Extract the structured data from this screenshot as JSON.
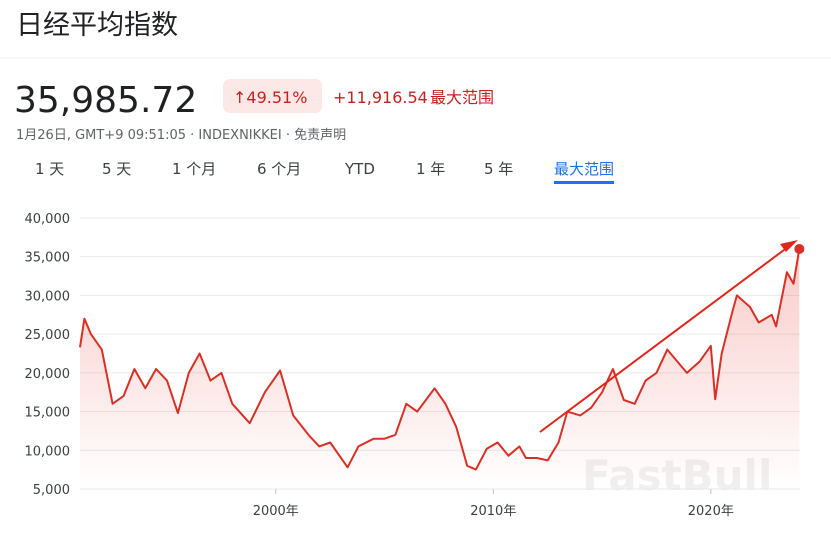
{
  "header": {
    "title": "日经平均指数",
    "price": "35,985.72",
    "change_percent": "↑49.51%",
    "change": "+11,916.54",
    "range": "最大范围",
    "timestamp": "1月26日, GMT+9 09:51:05 · INDEXNIKKEI · 免责声明"
  },
  "tabs": {
    "items": [
      "1 天",
      "5 天",
      "1 个月",
      "6 个月",
      "YTD",
      "1 年",
      "5 年",
      "最大范围"
    ],
    "selected": 7
  },
  "chart_data": {
    "type": "line",
    "color": "#d93025",
    "watermark": "FastBull",
    "grid": true,
    "xlim": [
      1991,
      2024.1
    ],
    "xticks": [
      {
        "value": 2000,
        "label": "2000年"
      },
      {
        "value": 2010,
        "label": "2010年"
      },
      {
        "value": 2020,
        "label": "2020年"
      }
    ],
    "ylim": [
      5000,
      40000
    ],
    "yticks": [
      {
        "value": 5000,
        "label": "5,000"
      },
      {
        "value": 10000,
        "label": "10,000"
      },
      {
        "value": 15000,
        "label": "15,000"
      },
      {
        "value": 20000,
        "label": "20,000"
      },
      {
        "value": 25000,
        "label": "25,000"
      },
      {
        "value": 30000,
        "label": "30,000"
      },
      {
        "value": 35000,
        "label": "35,000"
      },
      {
        "value": 40000,
        "label": "40,000"
      }
    ],
    "x": [
      1991.0,
      1991.2,
      1991.5,
      1992.0,
      1992.5,
      1993.0,
      1993.5,
      1994.0,
      1994.5,
      1995.0,
      1995.5,
      1996.0,
      1996.5,
      1997.0,
      1997.5,
      1998.0,
      1998.8,
      1999.5,
      2000.2,
      2000.8,
      2001.5,
      2002.0,
      2002.5,
      2003.3,
      2003.8,
      2004.5,
      2005.0,
      2005.5,
      2006.0,
      2006.5,
      2007.3,
      2007.8,
      2008.3,
      2008.8,
      2009.2,
      2009.7,
      2010.2,
      2010.7,
      2011.2,
      2011.5,
      2012.0,
      2012.5,
      2013.0,
      2013.4,
      2014.0,
      2014.5,
      2015.0,
      2015.5,
      2016.0,
      2016.5,
      2017.0,
      2017.5,
      2018.0,
      2018.9,
      2019.5,
      2020.0,
      2020.2,
      2020.5,
      2021.0,
      2021.2,
      2021.8,
      2022.2,
      2022.8,
      2023.0,
      2023.5,
      2023.8,
      2024.07
    ],
    "values": [
      23300,
      27000,
      25000,
      23000,
      16000,
      17000,
      20500,
      18000,
      20500,
      19000,
      14800,
      20000,
      22500,
      19000,
      20000,
      16000,
      13500,
      17500,
      20300,
      14500,
      12000,
      10500,
      11000,
      7800,
      10500,
      11500,
      11500,
      12000,
      16000,
      15000,
      18000,
      16000,
      13000,
      8000,
      7500,
      10200,
      11000,
      9300,
      10500,
      9000,
      9000,
      8700,
      11000,
      15000,
      14500,
      15500,
      17500,
      20500,
      16500,
      16000,
      19000,
      20000,
      23000,
      20000,
      21500,
      23500,
      16600,
      22500,
      28000,
      30000,
      28500,
      26500,
      27500,
      26000,
      33000,
      31500,
      36000
    ]
  }
}
